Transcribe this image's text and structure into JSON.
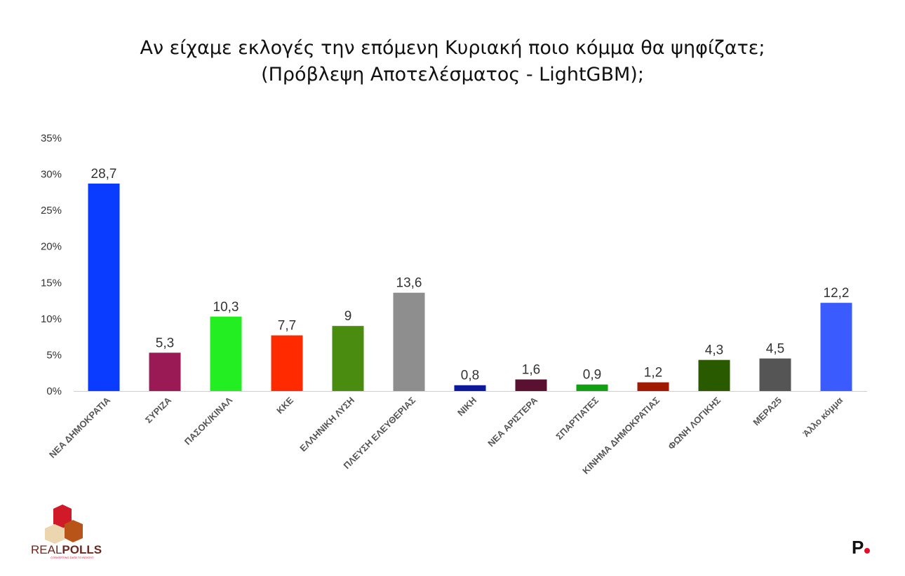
{
  "chart_data": {
    "type": "bar",
    "title": "Αν είχαμε εκλογές την επόμενη Κυριακή ποιο κόμμα θα ψηφίζατε;",
    "subtitle": "(Πρόβλεψη Αποτελέσματος - LightGBM);",
    "categories": [
      "ΝΕΑ ΔΗΜΟΚΡΑΤΙΑ",
      "ΣΥΡΙΖΑ",
      "ΠΑΣΟΚ/ΚΙΝΑΛ",
      "ΚΚΕ",
      "ΕΛΛΗΝΙΚΗ ΛΥΣΗ",
      "ΠΛΕΥΣΗ ΕΛΕΥΘΕΡΙΑΣ",
      "ΝΙΚΗ",
      "ΝΕΑ ΑΡΙΣΤΕΡΑ",
      "ΣΠΑΡΤΙΑΤΕΣ",
      "ΚΙΝΗΜΑ ΔΗΜΟΚΡΑΤΙΑΣ",
      "ΦΩΝΗ ΛΟΓΙΚΗΣ",
      "ΜΕΡΑ25",
      "Άλλο κόμμα"
    ],
    "values": [
      28.7,
      5.3,
      10.3,
      7.7,
      9,
      13.6,
      0.8,
      1.6,
      0.9,
      1.2,
      4.3,
      4.5,
      12.2
    ],
    "value_labels": [
      "28,7",
      "5,3",
      "10,3",
      "7,7",
      "9",
      "13,6",
      "0,8",
      "1,6",
      "0,9",
      "1,2",
      "4,3",
      "4,5",
      "12,2"
    ],
    "colors": [
      "#0a3cff",
      "#9a1a55",
      "#22ee22",
      "#ff2a00",
      "#4a8c10",
      "#8e8e8e",
      "#0a1a9a",
      "#5a1030",
      "#10a010",
      "#a01a00",
      "#2a5a00",
      "#555555",
      "#3a5cff"
    ],
    "yticks": [
      "0%",
      "5%",
      "10%",
      "15%",
      "20%",
      "25%",
      "30%",
      "35%"
    ],
    "ylim": [
      0,
      35
    ],
    "grid": false,
    "xlabel": "",
    "ylabel": ""
  },
  "logos": {
    "left": "REALPOLLS",
    "left_tagline": "CONVERTING DATA TO INSIGHT",
    "right": "P."
  }
}
